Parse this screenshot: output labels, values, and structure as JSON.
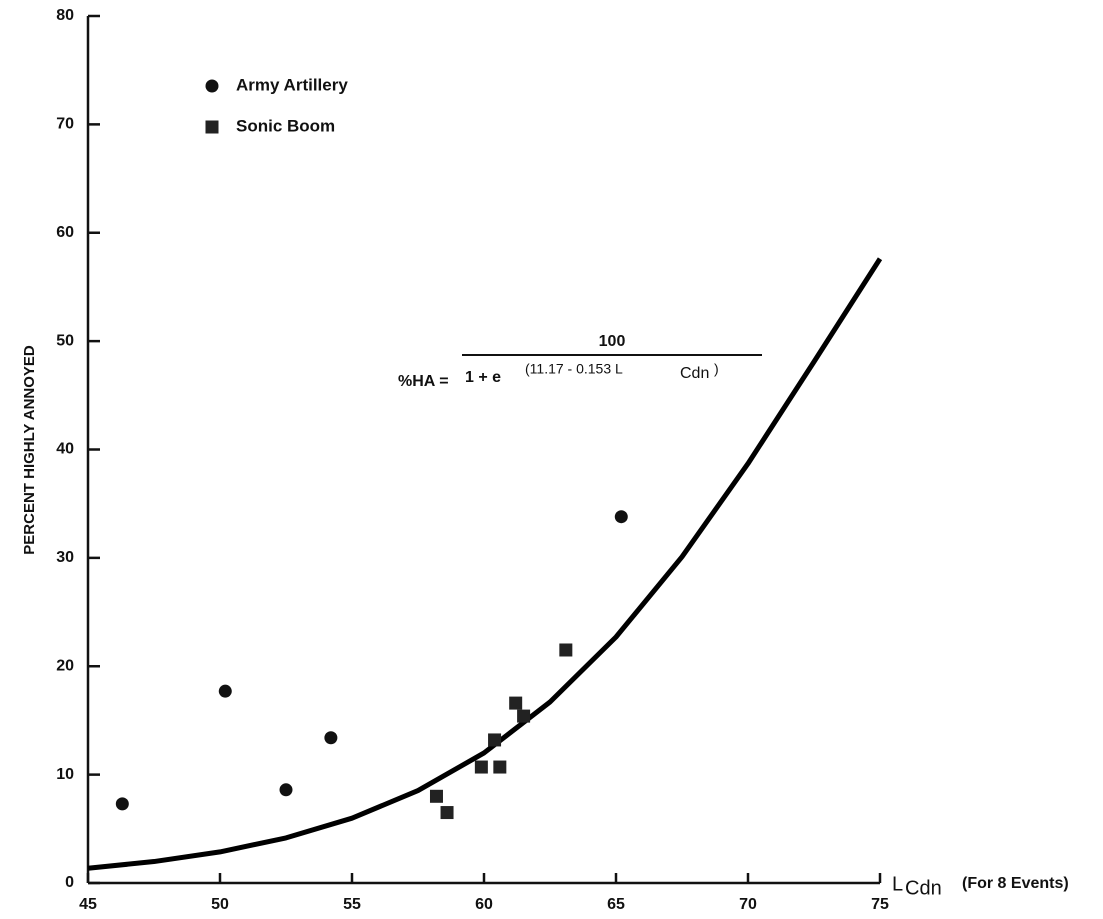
{
  "chart_data": {
    "type": "scatter",
    "y_label": "PERCENT HIGHLY ANNOYED",
    "x_label": "L",
    "x_label_sub": "Cdn",
    "x_label_note": "(For 8 Events)",
    "xlim": [
      45,
      75
    ],
    "xticks": [
      45,
      50,
      55,
      60,
      65,
      70,
      75
    ],
    "ylim": [
      0,
      80
    ],
    "yticks": [
      0,
      10,
      20,
      30,
      40,
      50,
      60,
      70,
      80
    ],
    "series": [
      {
        "name": "Army Artillery",
        "marker": "circle",
        "color": "#111111",
        "x": [
          46.3,
          50.2,
          52.5,
          54.2,
          65.2
        ],
        "values": [
          7.3,
          17.7,
          8.6,
          13.4,
          33.8
        ]
      },
      {
        "name": "Sonic Boom",
        "marker": "square",
        "color": "#222222",
        "x": [
          58.2,
          58.6,
          59.9,
          60.6,
          60.4,
          61.2,
          61.5,
          63.1
        ],
        "values": [
          8.0,
          6.5,
          10.7,
          10.7,
          13.2,
          16.6,
          15.4,
          21.5
        ]
      }
    ],
    "fit": {
      "type": "line",
      "color": "#000000",
      "x": [
        45,
        47.5,
        50,
        52.5,
        55,
        57.5,
        60,
        62.5,
        65,
        67.5,
        70,
        72.5,
        75
      ],
      "values": [
        1.36,
        1.98,
        2.87,
        4.16,
        5.98,
        8.53,
        12.0,
        16.7,
        22.7,
        30.1,
        38.7,
        48.1,
        57.6
      ]
    },
    "annotation": {
      "lhs": "%HA =",
      "numerator": "100",
      "denominator": "1 + e",
      "exponent": "(11.17 - 0.153 L",
      "exponent_sub": "Cdn",
      "exponent_end": ")"
    }
  }
}
